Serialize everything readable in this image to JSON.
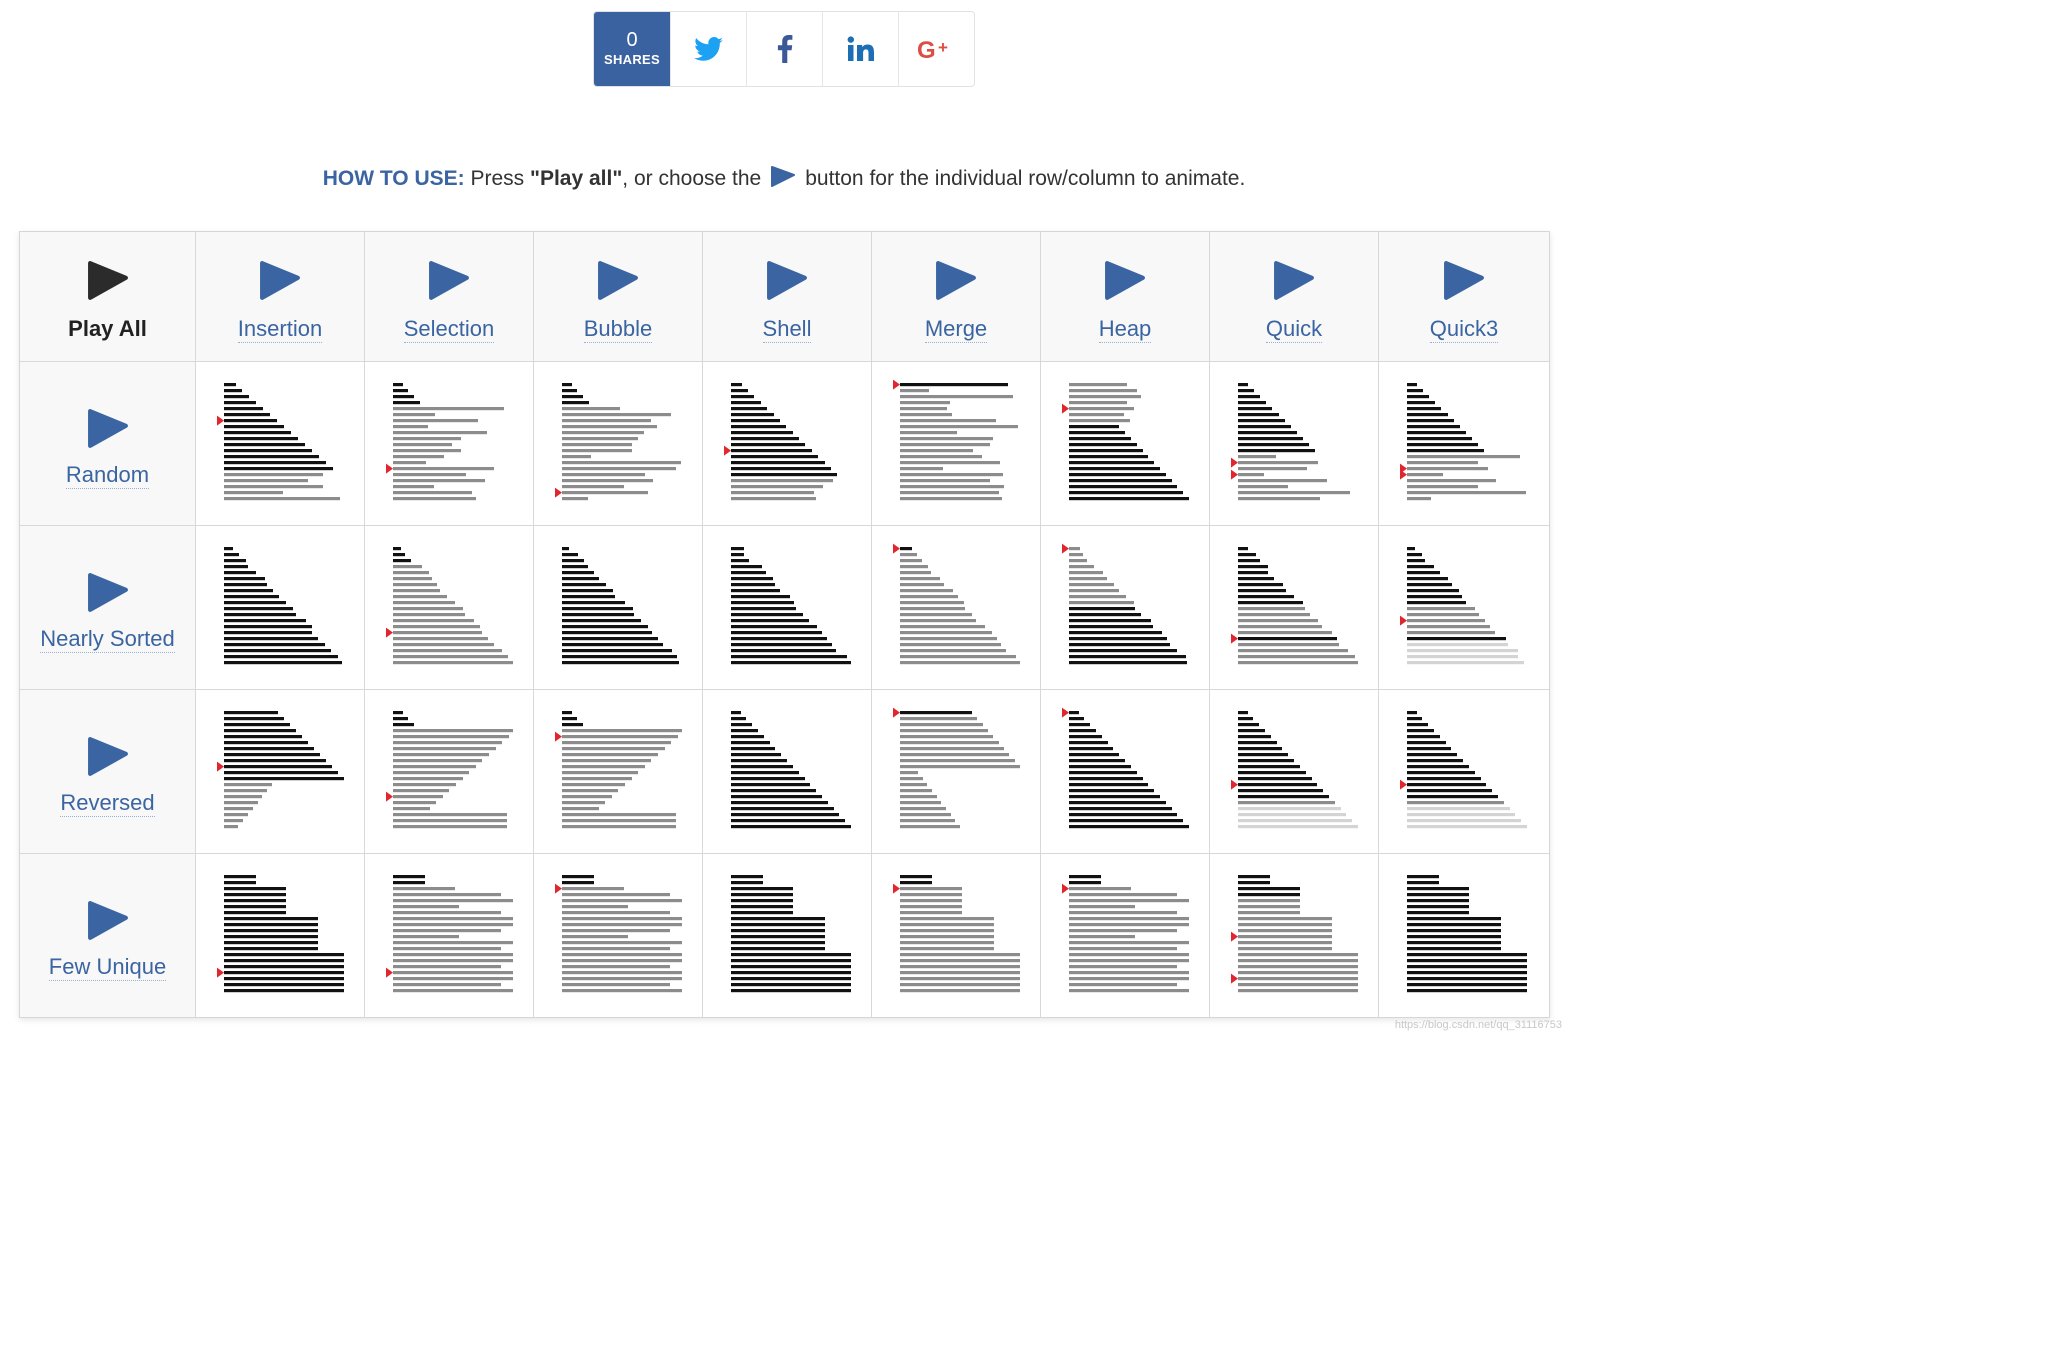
{
  "share": {
    "count": "0",
    "count_label": "SHARES",
    "networks": [
      "twitter-icon",
      "facebook-icon",
      "linkedin-icon",
      "google-plus-icon"
    ]
  },
  "howto": {
    "lead": "HOW TO USE:",
    "text_a": " Press ",
    "strong": "\"Play all\"",
    "text_b": ", or choose the",
    "text_c": "button for the individual row/column to animate."
  },
  "columns": [
    "Play All",
    "Insertion",
    "Selection",
    "Bubble",
    "Shell",
    "Merge",
    "Heap",
    "Quick",
    "Quick3"
  ],
  "rows": [
    "Random",
    "Nearly Sorted",
    "Reversed",
    "Few Unique"
  ],
  "colors": {
    "accent": "#3a64a2",
    "play_all": "#2b2b2b",
    "bar_sorted": "#111111",
    "bar_unsorted": "#8c8c8c",
    "bar_faded": "#d4d4d4",
    "pointer": "#e0262e"
  },
  "watermark": "https://blog.csdn.net/qq_31116753"
}
